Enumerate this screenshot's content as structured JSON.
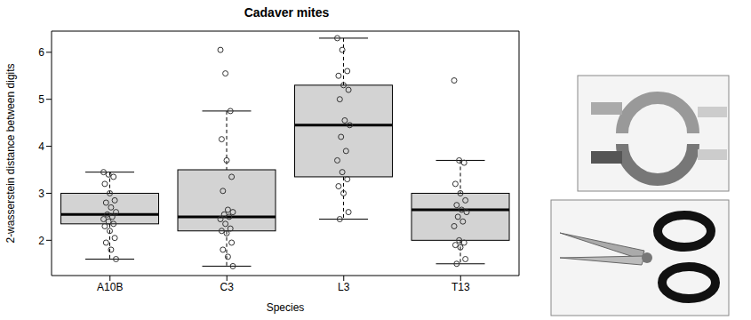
{
  "chart_data": {
    "type": "box",
    "title": "Cadaver mites",
    "x_label": "Species",
    "y_label": "2-wasserstein distance between digits",
    "categories": [
      "A10B",
      "C3",
      "L3",
      "T13"
    ],
    "boxes": [
      {
        "whisker_low": 1.6,
        "q1": 2.35,
        "median": 2.55,
        "q3": 3.0,
        "whisker_high": 3.45
      },
      {
        "whisker_low": 1.45,
        "q1": 2.2,
        "median": 2.5,
        "q3": 3.5,
        "whisker_high": 4.75
      },
      {
        "whisker_low": 2.45,
        "q1": 3.35,
        "median": 4.45,
        "q3": 5.3,
        "whisker_high": 6.3
      },
      {
        "whisker_low": 1.5,
        "q1": 2.0,
        "median": 2.65,
        "q3": 3.0,
        "whisker_high": 3.7
      }
    ],
    "points": [
      [
        3.45,
        3.4,
        3.35,
        3.2,
        3.0,
        2.85,
        2.8,
        2.7,
        2.6,
        2.55,
        2.5,
        2.45,
        2.4,
        2.35,
        2.3,
        2.2,
        2.05,
        1.95,
        1.8,
        1.6
      ],
      [
        6.05,
        5.55,
        4.75,
        4.15,
        3.7,
        3.35,
        3.05,
        2.65,
        2.6,
        2.55,
        2.5,
        2.45,
        2.35,
        2.25,
        2.2,
        2.15,
        1.95,
        1.8,
        1.65,
        1.45
      ],
      [
        6.3,
        6.05,
        5.6,
        5.5,
        5.3,
        5.2,
        5.0,
        4.55,
        4.45,
        4.2,
        3.9,
        3.7,
        3.45,
        3.3,
        3.15,
        3.0,
        2.6,
        2.45
      ],
      [
        5.4,
        3.7,
        3.65,
        3.2,
        3.0,
        2.85,
        2.75,
        2.65,
        2.6,
        2.5,
        2.4,
        2.3,
        2.0,
        1.95,
        1.9,
        1.85,
        1.6,
        1.5
      ]
    ],
    "ylim": [
      1.25,
      6.45
    ],
    "yticks": [
      2,
      3,
      4,
      5,
      6
    ],
    "color": "#d3d3d3"
  }
}
